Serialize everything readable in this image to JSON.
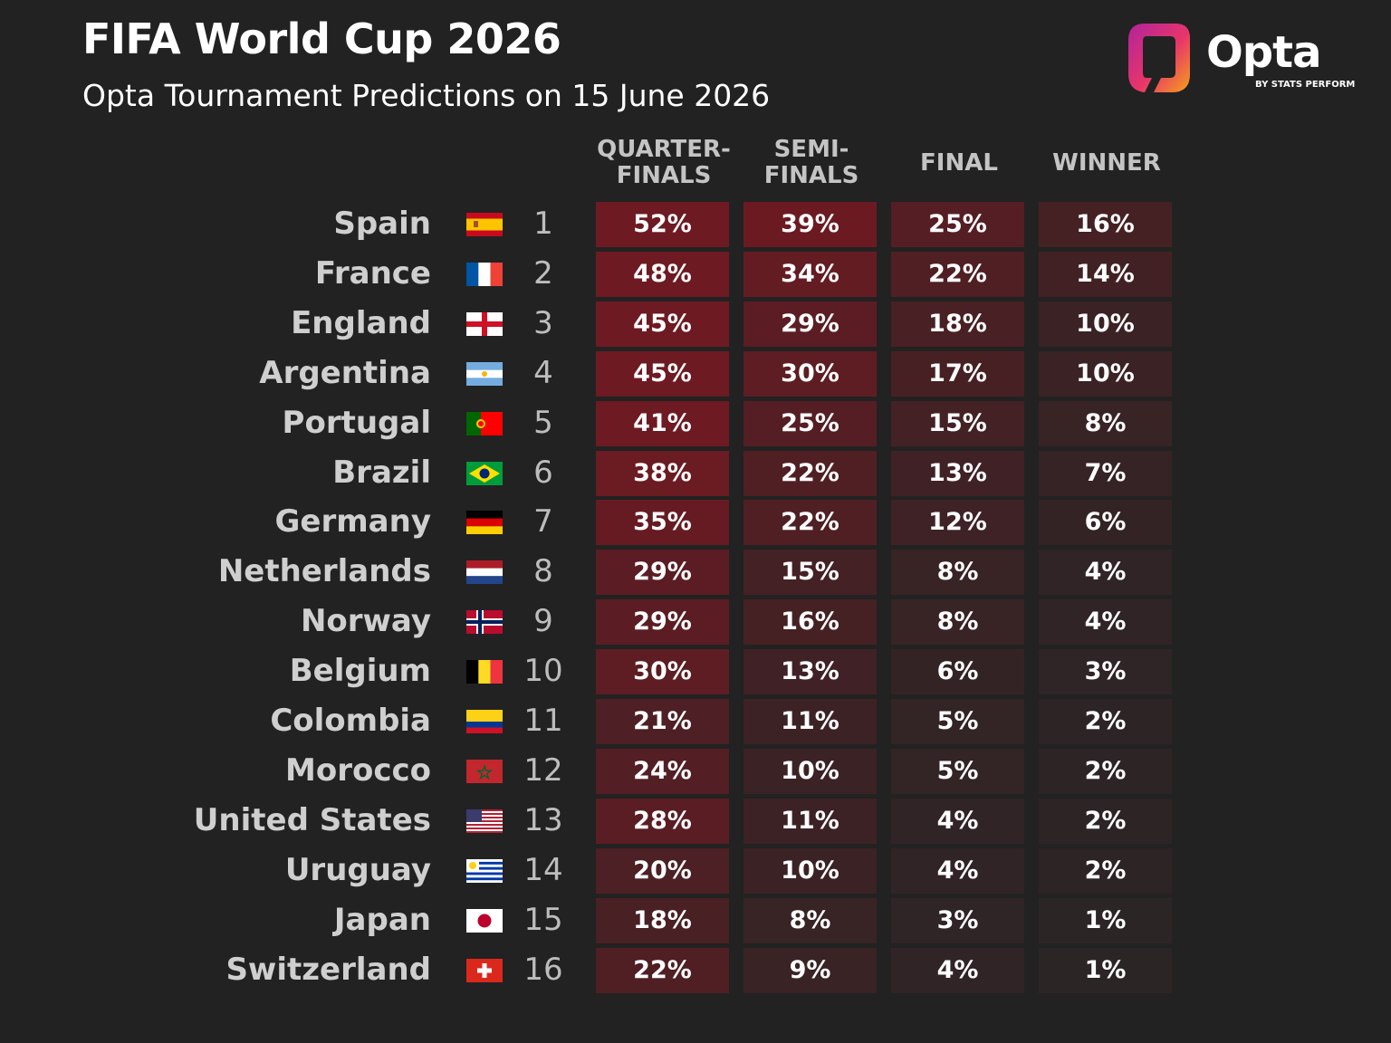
{
  "title": "FIFA World Cup 2026",
  "subtitle": "Opta Tournament Predictions on 15 June 2026",
  "brand": {
    "name": "Opta",
    "tagline": "BY STATS PERFORM"
  },
  "chart_data": {
    "type": "table",
    "columns": [
      "QUARTER-FINALS",
      "SEMI-FINALS",
      "FINAL",
      "WINNER"
    ],
    "column_header_lines": [
      [
        "QUARTER-",
        "FINALS"
      ],
      [
        "SEMI-",
        "FINALS"
      ],
      [
        "FINAL"
      ],
      [
        "WINNER"
      ]
    ],
    "rows": [
      {
        "team": "Spain",
        "rank": "1",
        "flag": "spain-flag-icon",
        "values": [
          52,
          39,
          25,
          16
        ]
      },
      {
        "team": "France",
        "rank": "2",
        "flag": "france-flag-icon",
        "values": [
          48,
          34,
          22,
          14
        ]
      },
      {
        "team": "England",
        "rank": "3",
        "flag": "england-flag-icon",
        "values": [
          45,
          29,
          18,
          10
        ]
      },
      {
        "team": "Argentina",
        "rank": "4",
        "flag": "argentina-flag-icon",
        "values": [
          45,
          30,
          17,
          10
        ]
      },
      {
        "team": "Portugal",
        "rank": "5",
        "flag": "portugal-flag-icon",
        "values": [
          41,
          25,
          15,
          8
        ]
      },
      {
        "team": "Brazil",
        "rank": "6",
        "flag": "brazil-flag-icon",
        "values": [
          38,
          22,
          13,
          7
        ]
      },
      {
        "team": "Germany",
        "rank": "7",
        "flag": "germany-flag-icon",
        "values": [
          35,
          22,
          12,
          6
        ]
      },
      {
        "team": "Netherlands",
        "rank": "8",
        "flag": "netherlands-flag-icon",
        "values": [
          29,
          15,
          8,
          4
        ]
      },
      {
        "team": "Norway",
        "rank": "9",
        "flag": "norway-flag-icon",
        "values": [
          29,
          16,
          8,
          4
        ]
      },
      {
        "team": "Belgium",
        "rank": "10",
        "flag": "belgium-flag-icon",
        "values": [
          30,
          13,
          6,
          3
        ]
      },
      {
        "team": "Colombia",
        "rank": "11",
        "flag": "colombia-flag-icon",
        "values": [
          21,
          11,
          5,
          2
        ]
      },
      {
        "team": "Morocco",
        "rank": "12",
        "flag": "morocco-flag-icon",
        "values": [
          24,
          10,
          5,
          2
        ]
      },
      {
        "team": "United States",
        "rank": "13",
        "flag": "usa-flag-icon",
        "values": [
          28,
          11,
          4,
          2
        ]
      },
      {
        "team": "Uruguay",
        "rank": "14",
        "flag": "uruguay-flag-icon",
        "values": [
          20,
          10,
          4,
          2
        ]
      },
      {
        "team": "Japan",
        "rank": "15",
        "flag": "japan-flag-icon",
        "values": [
          18,
          8,
          3,
          1
        ]
      },
      {
        "team": "Switzerland",
        "rank": "16",
        "flag": "switzerland-flag-icon",
        "values": [
          22,
          9,
          4,
          1
        ]
      }
    ],
    "value_suffix": "%",
    "colors": {
      "background": "#222222",
      "heat_high": "#6e1a22",
      "heat_low": "#2a2526"
    }
  }
}
